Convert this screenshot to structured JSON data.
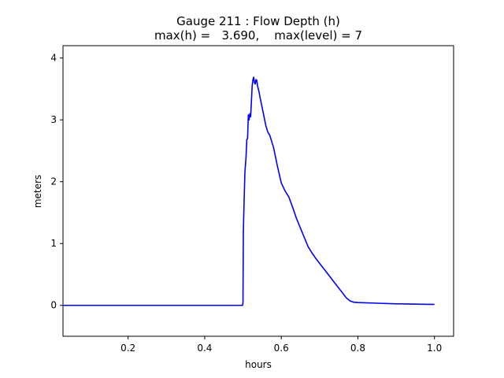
{
  "chart_data": {
    "type": "line",
    "title_line1": "Gauge 211 : Flow Depth (h)",
    "title_line2": "max(h) =   3.690,    max(level) = 7",
    "xlabel": "hours",
    "ylabel": "meters",
    "xlim": [
      0.03,
      1.05
    ],
    "ylim": [
      -0.5,
      4.2
    ],
    "xticks": [
      0.2,
      0.4,
      0.6,
      0.8,
      1.0
    ],
    "xtick_labels": [
      "0.2",
      "0.4",
      "0.6",
      "0.8",
      "1.0"
    ],
    "yticks": [
      0,
      1,
      2,
      3,
      4
    ],
    "ytick_labels": [
      "0",
      "1",
      "2",
      "3",
      "4"
    ],
    "grid": false,
    "series": [
      {
        "color": "#0000ff",
        "x": [
          0.03,
          0.1,
          0.2,
          0.3,
          0.4,
          0.499,
          0.5,
          0.501,
          0.503,
          0.505,
          0.508,
          0.51,
          0.512,
          0.514,
          0.516,
          0.518,
          0.52,
          0.522,
          0.524,
          0.526,
          0.528,
          0.53,
          0.532,
          0.534,
          0.536,
          0.538,
          0.54,
          0.542,
          0.545,
          0.55,
          0.555,
          0.56,
          0.565,
          0.57,
          0.575,
          0.58,
          0.59,
          0.6,
          0.61,
          0.62,
          0.63,
          0.64,
          0.65,
          0.66,
          0.67,
          0.68,
          0.69,
          0.7,
          0.72,
          0.74,
          0.76,
          0.77,
          0.78,
          0.79,
          0.8,
          0.85,
          0.9,
          0.95,
          1.0
        ],
        "y": [
          0.0,
          0.0,
          0.0,
          0.0,
          0.0,
          0.0,
          0.05,
          1.2,
          1.7,
          2.15,
          2.4,
          2.68,
          2.7,
          3.08,
          3.0,
          3.1,
          3.05,
          3.3,
          3.55,
          3.65,
          3.69,
          3.6,
          3.58,
          3.65,
          3.64,
          3.55,
          3.5,
          3.45,
          3.35,
          3.2,
          3.05,
          2.9,
          2.8,
          2.75,
          2.65,
          2.55,
          2.25,
          1.98,
          1.85,
          1.75,
          1.58,
          1.4,
          1.25,
          1.1,
          0.95,
          0.85,
          0.76,
          0.68,
          0.52,
          0.36,
          0.2,
          0.12,
          0.07,
          0.05,
          0.045,
          0.035,
          0.025,
          0.02,
          0.015
        ]
      }
    ]
  }
}
